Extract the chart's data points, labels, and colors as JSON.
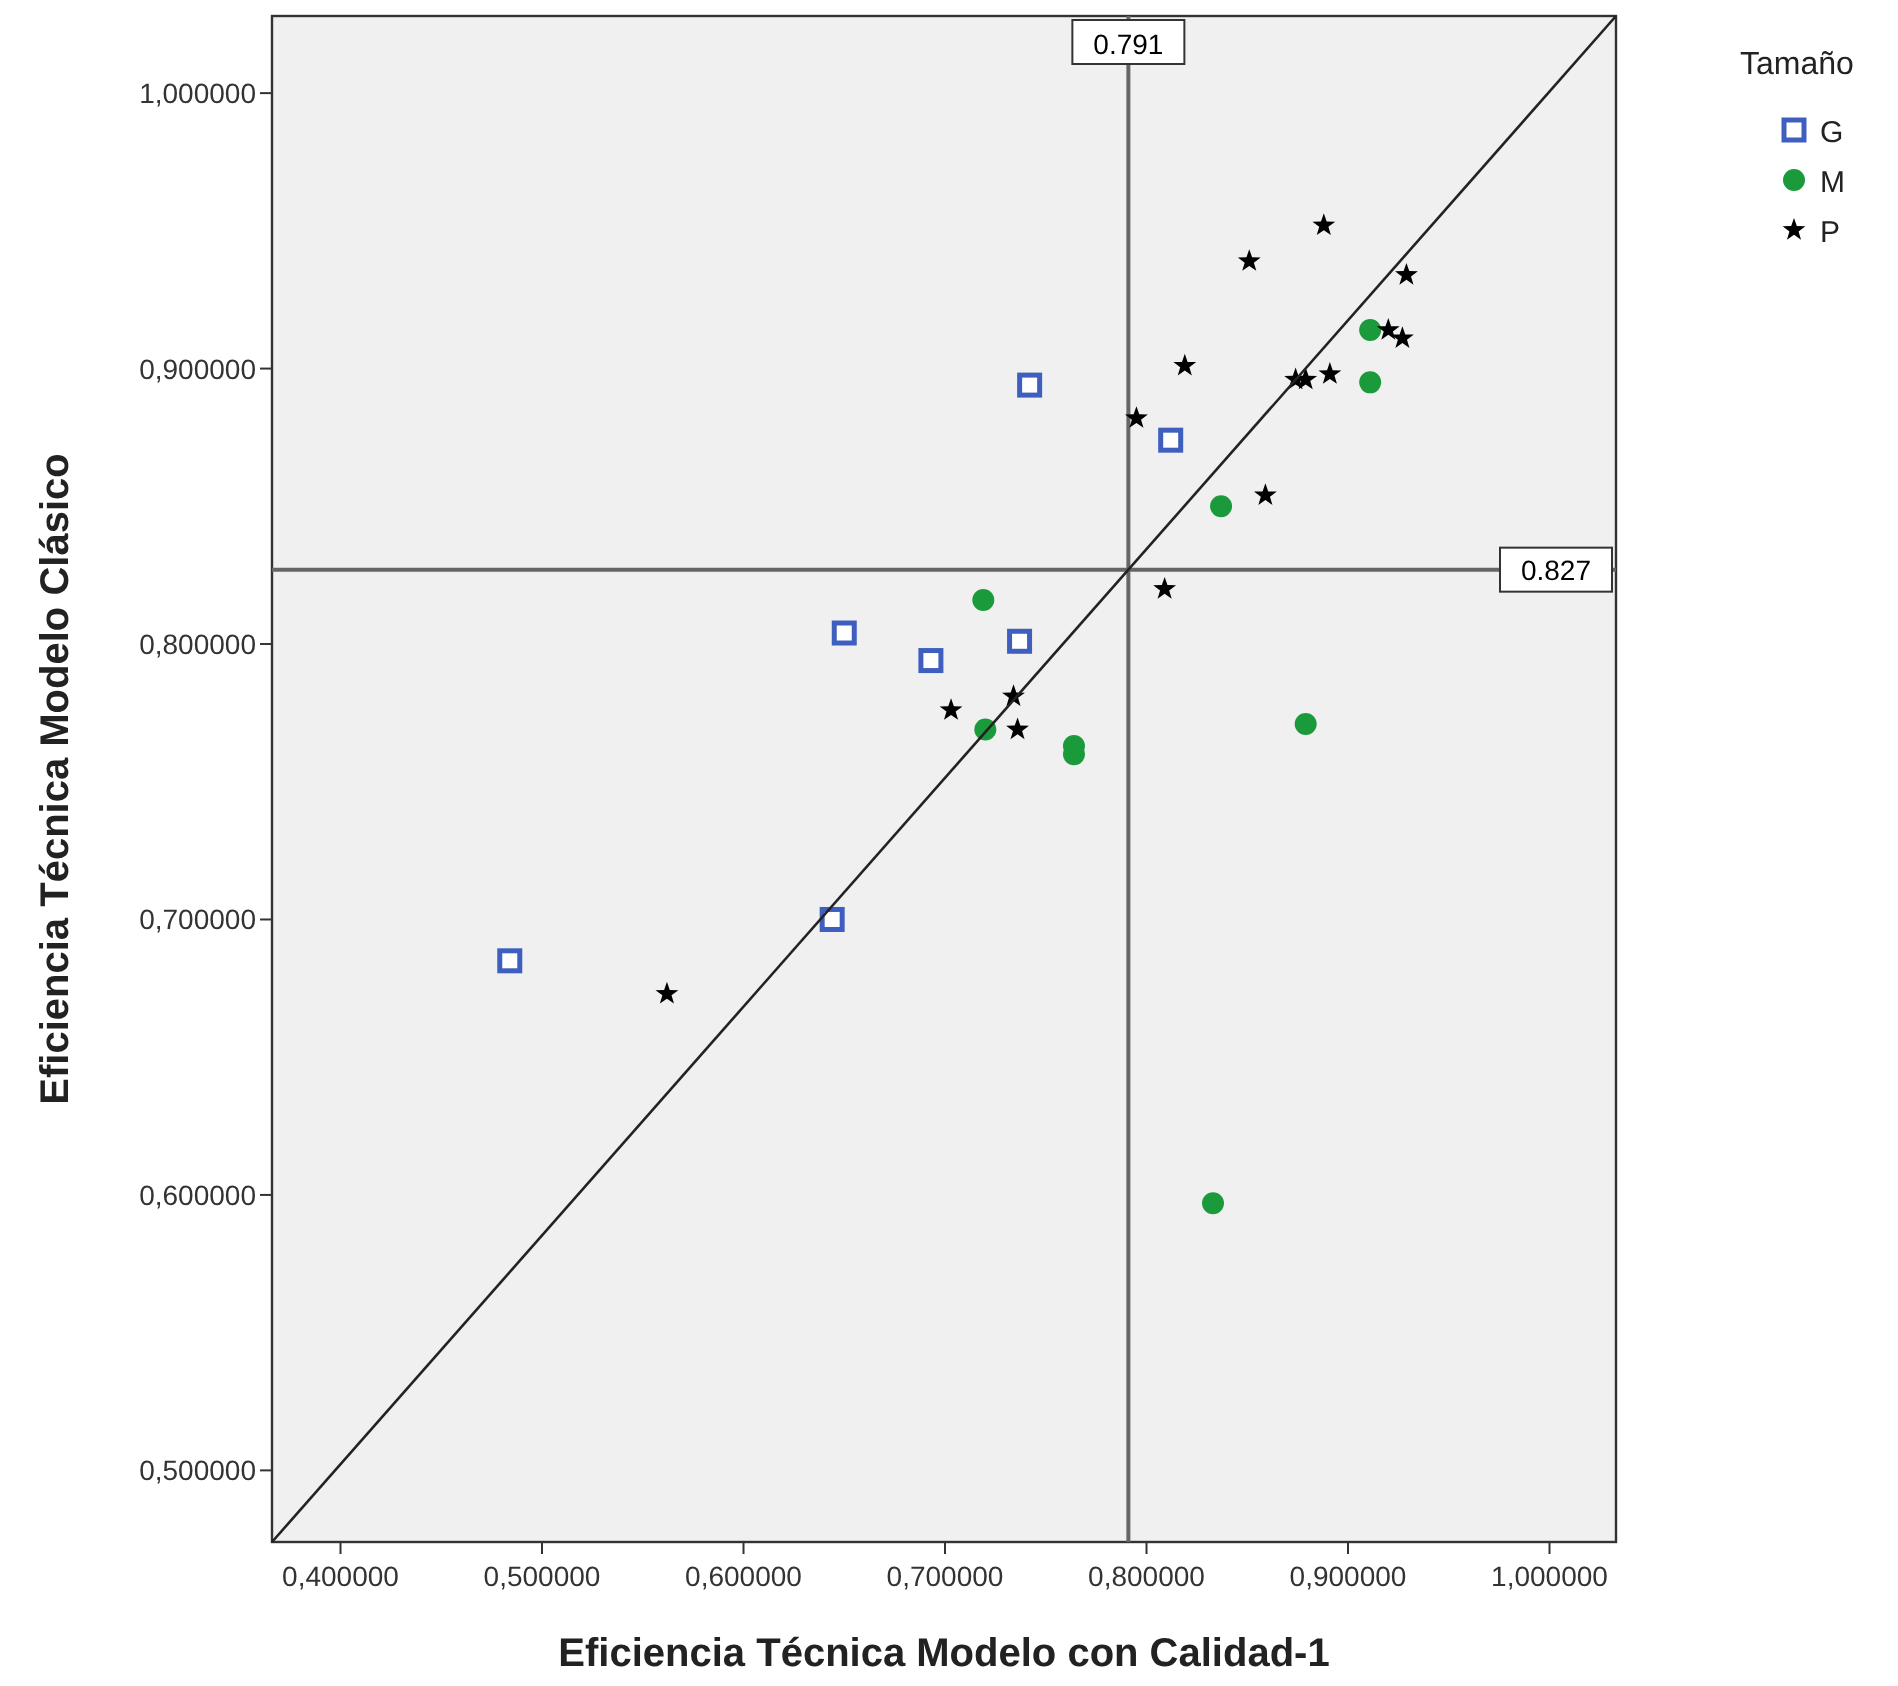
{
  "chart_data": {
    "type": "scatter",
    "xlabel": "Eficiencia Técnica Modelo con Calidad-1",
    "ylabel": "Eficiencia Técnica Modelo Clásico",
    "legend_title": "Tamaño",
    "xlim": [
      0.366,
      1.033
    ],
    "ylim": [
      0.474,
      1.028
    ],
    "xticks": [
      {
        "value": 0.4,
        "label": "0,400000"
      },
      {
        "value": 0.5,
        "label": "0,500000"
      },
      {
        "value": 0.6,
        "label": "0,600000"
      },
      {
        "value": 0.7,
        "label": "0,700000"
      },
      {
        "value": 0.8,
        "label": "0,800000"
      },
      {
        "value": 0.9,
        "label": "0,900000"
      },
      {
        "value": 1.0,
        "label": "1,000000"
      }
    ],
    "yticks": [
      {
        "value": 0.5,
        "label": "0,500000"
      },
      {
        "value": 0.6,
        "label": "0,600000"
      },
      {
        "value": 0.7,
        "label": "0,700000"
      },
      {
        "value": 0.8,
        "label": "0,800000"
      },
      {
        "value": 0.9,
        "label": "0,900000"
      },
      {
        "value": 1.0,
        "label": "1,000000"
      }
    ],
    "grid": false,
    "legend": "top right",
    "ref_lines": [
      {
        "axis": "x",
        "value": 0.791,
        "label": "0.791",
        "color": "#666666"
      },
      {
        "axis": "y",
        "value": 0.827,
        "label": "0.827",
        "color": "#666666"
      }
    ],
    "series": [
      {
        "name": "G",
        "color": "#3f5fbf",
        "marker": "square",
        "x": [
          0.484,
          0.644,
          0.65,
          0.693,
          0.737,
          0.742,
          0.812
        ],
        "values": [
          0.685,
          0.7,
          0.804,
          0.794,
          0.801,
          0.894,
          0.874
        ]
      },
      {
        "name": "M",
        "color": "#1a9a3a",
        "marker": "circle",
        "x": [
          0.719,
          0.72,
          0.764,
          0.764,
          0.837,
          0.879,
          0.833,
          0.911,
          0.911
        ],
        "values": [
          0.816,
          0.769,
          0.763,
          0.76,
          0.85,
          0.771,
          0.597,
          0.914,
          0.895
        ]
      },
      {
        "name": "P",
        "color": "#000000",
        "marker": "star",
        "x": [
          0.562,
          0.703,
          0.734,
          0.736,
          0.809,
          0.795,
          0.819,
          0.851,
          0.888,
          0.929,
          0.92,
          0.927,
          0.874,
          0.879,
          0.891,
          0.859
        ],
        "values": [
          0.673,
          0.776,
          0.781,
          0.769,
          0.82,
          0.882,
          0.901,
          0.939,
          0.952,
          0.934,
          0.914,
          0.911,
          0.896,
          0.896,
          0.898,
          0.854
        ]
      },
      {
        "type": "line",
        "color": "#222222",
        "marker": "none",
        "x": [
          0.366,
          1.033
        ],
        "values": [
          0.474,
          1.028
        ]
      }
    ]
  }
}
